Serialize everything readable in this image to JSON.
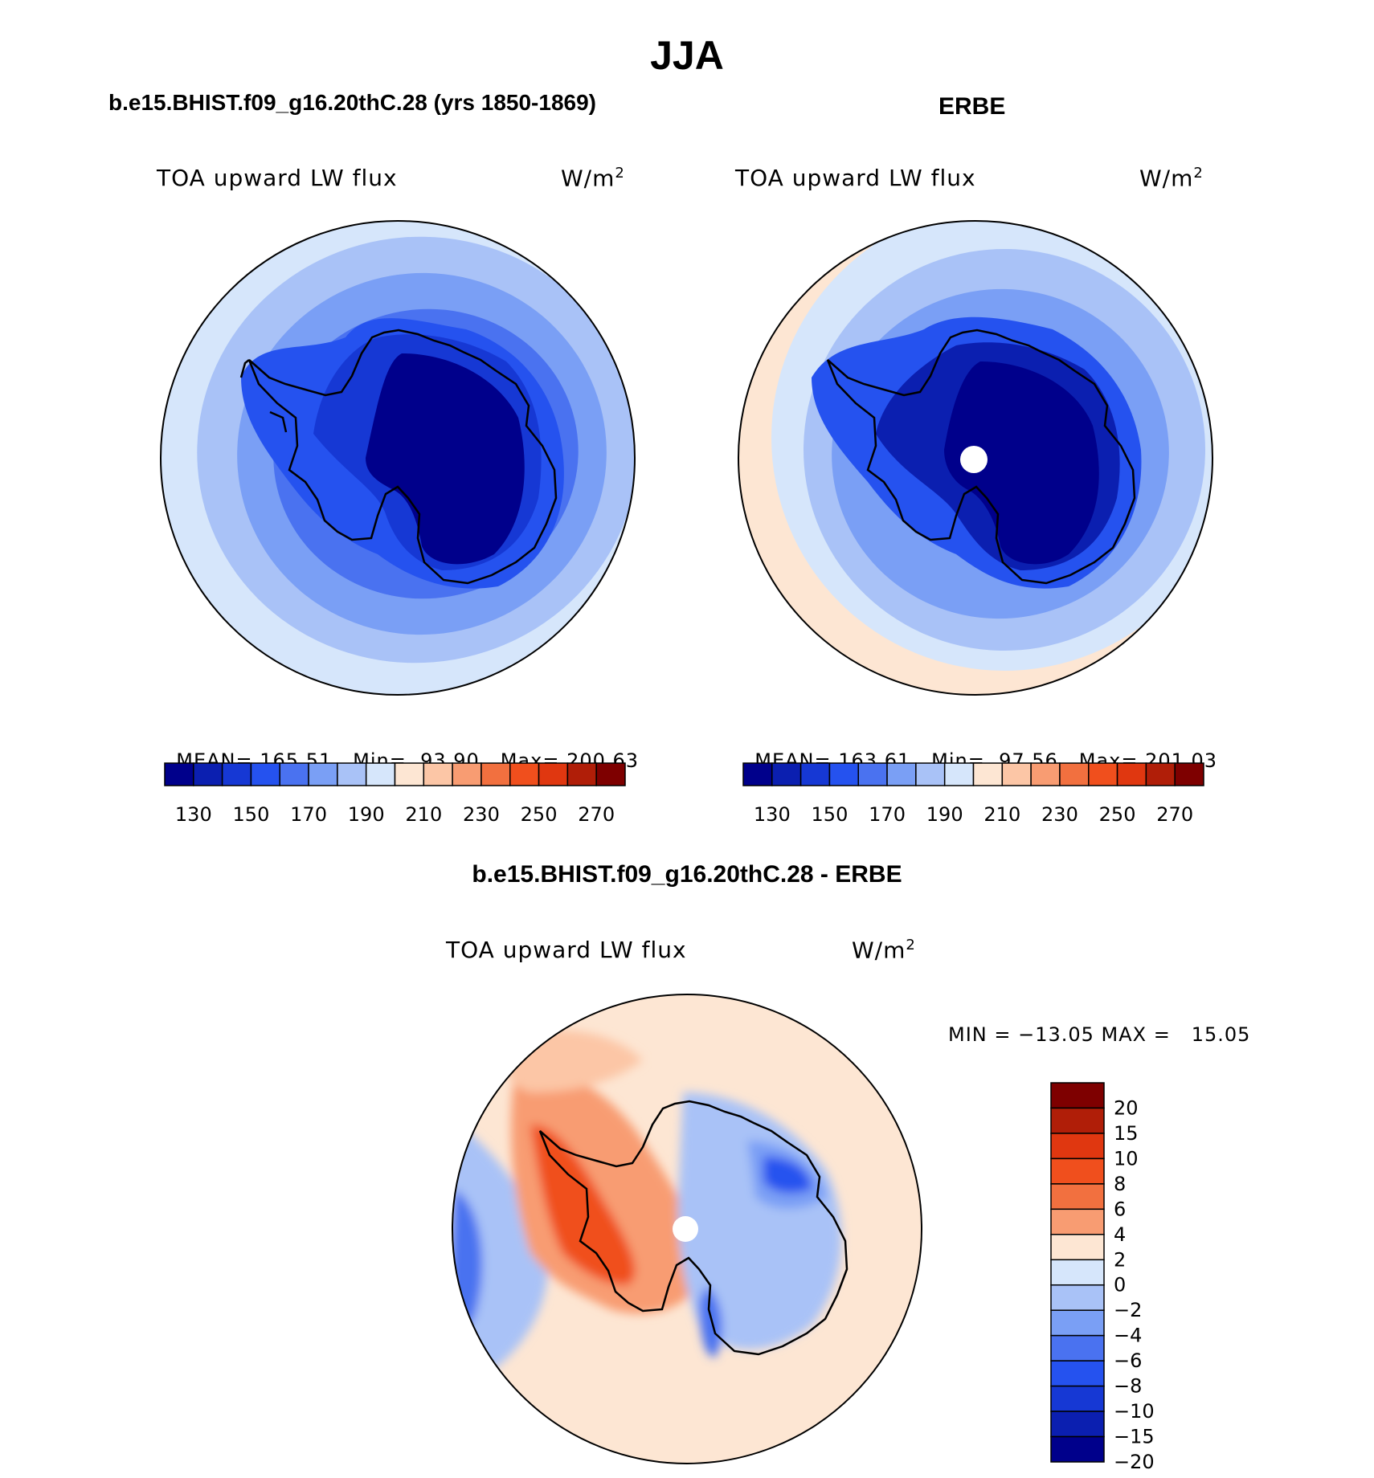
{
  "figure": {
    "title": "JJA",
    "panels": [
      {
        "case_title": "b.e15.BHIST.f09_g16.20thC.28 (yrs 1850-1869)",
        "variable": "TOA upward LW flux",
        "units": "W/m",
        "units_sup": "2",
        "stats": {
          "mean_label": "MEAN=",
          "mean": "165.51",
          "min_label": "Min=",
          "min": "93.90",
          "max_label": "Max=",
          "max": "200.63"
        }
      },
      {
        "case_title": "ERBE",
        "variable": "TOA upward LW flux",
        "units": "W/m",
        "units_sup": "2",
        "stats": {
          "mean_label": "MEAN=",
          "mean": "163.61",
          "min_label": "Min=",
          "min": "97.56",
          "max_label": "Max=",
          "max": "201.03"
        }
      }
    ],
    "diff_panel": {
      "case_title": "b.e15.BHIST.f09_g16.20thC.28 - ERBE",
      "variable": "TOA upward LW flux",
      "units": "W/m",
      "units_sup": "2",
      "minmax": "MIN = −13.05 MAX =   15.05"
    }
  },
  "colorbars": {
    "main": {
      "colors": [
        "#00008b",
        "#0b1fb0",
        "#1638d4",
        "#2552ef",
        "#4a72f0",
        "#7a9ff5",
        "#a9c2f7",
        "#d6e6fb",
        "#fde6d3",
        "#fcc6a6",
        "#f89c72",
        "#f2703f",
        "#f04f1d",
        "#e03710",
        "#b01e08",
        "#7e0000"
      ],
      "labels": [
        "130",
        "150",
        "170",
        "190",
        "210",
        "230",
        "250",
        "270"
      ]
    },
    "diff": {
      "colors": [
        "#7e0000",
        "#b01e08",
        "#e03710",
        "#f04f1d",
        "#f2703f",
        "#f89c72",
        "#fde6d3",
        "#d6e6fb",
        "#a9c2f7",
        "#7a9ff5",
        "#4a72f0",
        "#2552ef",
        "#1638d4",
        "#0b1fb0",
        "#00008b"
      ],
      "labels": [
        "20",
        "15",
        "10",
        "8",
        "6",
        "4",
        "2",
        "0",
        "−2",
        "−4",
        "−6",
        "−8",
        "−10",
        "−15",
        "−20"
      ]
    }
  },
  "map_colors": {
    "c195": "#d6e6fb",
    "c185": "#a9c2f7",
    "c175": "#7a9ff5",
    "c165": "#4a72f0",
    "c155": "#2552ef",
    "c145": "#1638d4",
    "c135": "#0b1fb0",
    "c120": "#00008b",
    "c205": "#fde6d3",
    "pos4": "#fcc6a6",
    "pos6": "#f89c72",
    "pos10": "#f04f1d",
    "pos15": "#e03710",
    "neg2": "#a9c2f7",
    "neg6": "#7a9ff5",
    "neg8": "#4a72f0",
    "neg12": "#2552ef",
    "neg18": "#1638d4",
    "missing": "#ffffff",
    "coast": "#000000"
  }
}
